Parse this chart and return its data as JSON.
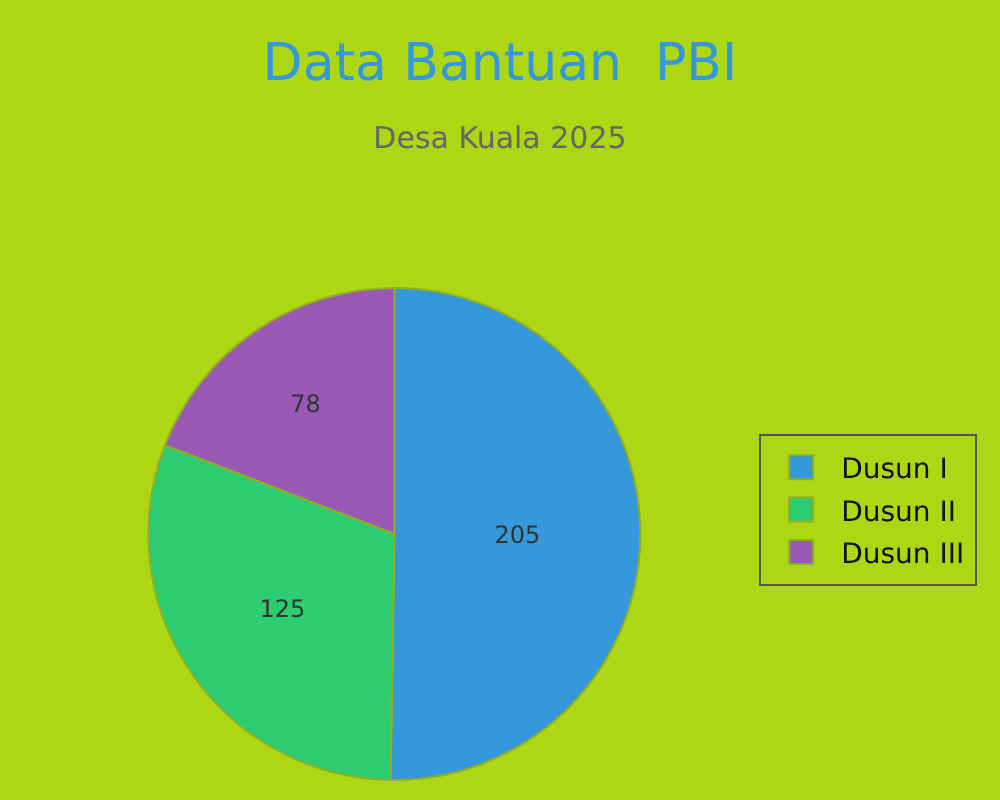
{
  "chart_data": {
    "type": "pie",
    "title": "Data Bantuan  PBI",
    "subtitle": "Desa Kuala 2025",
    "categories": [
      "Dusun I",
      "Dusun II",
      "Dusun III"
    ],
    "values": [
      205,
      125,
      78
    ],
    "colors": [
      "#3498db",
      "#2ecc71",
      "#9b59b6"
    ],
    "data_labels": true,
    "legend": "right"
  }
}
